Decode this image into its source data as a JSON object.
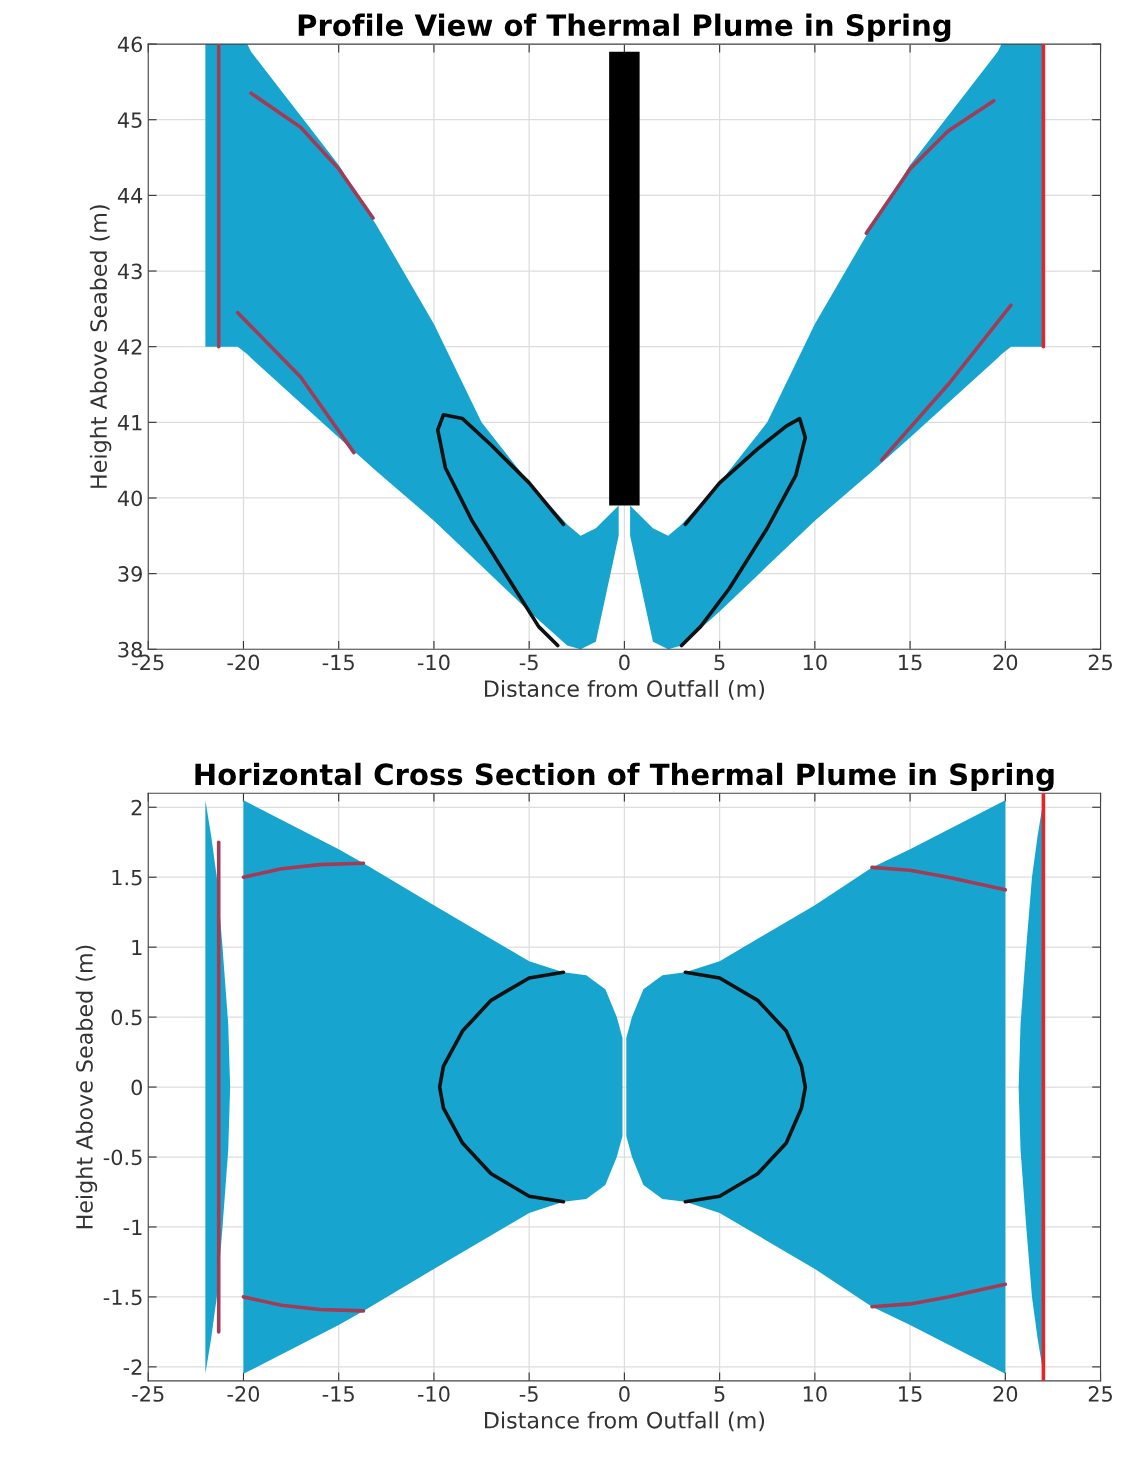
{
  "chart_data": [
    {
      "type": "line",
      "title": "Profile View of Thermal Plume in Spring",
      "xlabel": "Distance from Outfall (m)",
      "ylabel": "Height Above Seabed (m)",
      "xlim": [
        -25,
        25
      ],
      "xticks": [
        -25,
        -20,
        -15,
        -10,
        -5,
        0,
        5,
        10,
        15,
        20,
        25
      ],
      "ylim": [
        38,
        46
      ],
      "yticks": [
        38,
        39,
        40,
        41,
        42,
        43,
        44,
        45,
        46
      ],
      "grid": true,
      "series": [
        {
          "type": "area",
          "color": "#17a5cf",
          "x": [
            -22,
            -20.3,
            -19.8,
            -19.6,
            -15,
            -13,
            -10,
            -7.5,
            -5,
            -3,
            -2.3,
            -1.5,
            -0.3,
            -0.3,
            -1.5,
            -2.3,
            -3,
            -5,
            -7.5,
            -10,
            -13,
            -15,
            -19.6,
            -19.8,
            -20.3,
            -22
          ],
          "values": [
            46,
            46,
            46,
            45.9,
            44.4,
            43.6,
            42.3,
            41,
            40.2,
            39.65,
            39.5,
            39.6,
            39.9,
            39.5,
            38.1,
            38,
            38.05,
            38.5,
            39.1,
            39.7,
            40.35,
            40.8,
            41.85,
            41.9,
            42,
            42
          ]
        },
        {
          "type": "area",
          "color": "#17a5cf",
          "x": [
            0.3,
            1.5,
            2.3,
            3,
            5,
            7.5,
            10,
            13,
            15,
            19.6,
            19.8,
            20.3,
            22,
            22,
            20.3,
            19.8,
            19.6,
            15,
            13,
            10,
            7.5,
            5,
            3,
            2.3,
            1.5,
            0.3
          ],
          "values": [
            39.9,
            39.6,
            39.5,
            39.65,
            40.2,
            41,
            42.3,
            43.6,
            44.4,
            45.9,
            46,
            46,
            46,
            42,
            42,
            41.9,
            41.85,
            40.8,
            40.35,
            39.7,
            39.1,
            38.5,
            38.05,
            38,
            38.1,
            39.5
          ]
        },
        {
          "type": "area",
          "color": "#000000",
          "x": [
            -0.8,
            0.8,
            0.8,
            -0.8
          ],
          "values": [
            45.9,
            45.9,
            39.9,
            39.9
          ]
        },
        {
          "color": "#a23b55",
          "x": [
            -21.3,
            -21.3
          ],
          "values": [
            42,
            46
          ]
        },
        {
          "color": "#e3262a",
          "x": [
            22,
            22
          ],
          "values": [
            42,
            46
          ]
        },
        {
          "color": "#a23b55",
          "x": [
            -19.6,
            -17,
            -15,
            -13.2
          ],
          "values": [
            45.35,
            44.9,
            44.35,
            43.7
          ]
        },
        {
          "color": "#a23b55",
          "x": [
            -20.3,
            -17,
            -14.2
          ],
          "values": [
            42.45,
            41.6,
            40.6
          ]
        },
        {
          "color": "#a23b55",
          "x": [
            12.7,
            15,
            17,
            19.4
          ],
          "values": [
            43.5,
            44.35,
            44.85,
            45.25
          ]
        },
        {
          "color": "#a23b55",
          "x": [
            13.5,
            17,
            20.3
          ],
          "values": [
            40.5,
            41.5,
            42.55
          ]
        },
        {
          "color": "#111111",
          "x": [
            -3.2,
            -5,
            -7,
            -8.5,
            -9.5,
            -9.8,
            -9.4,
            -8,
            -6,
            -4.5,
            -3.5
          ],
          "values": [
            39.65,
            40.2,
            40.7,
            41.05,
            41.1,
            40.9,
            40.4,
            39.7,
            38.9,
            38.3,
            38.05
          ]
        },
        {
          "color": "#111111",
          "x": [
            3.2,
            5,
            7,
            8.5,
            9.2,
            9.5,
            9,
            7.5,
            5.5,
            4,
            3
          ],
          "values": [
            39.65,
            40.2,
            40.65,
            40.95,
            41.05,
            40.8,
            40.3,
            39.6,
            38.8,
            38.3,
            38.05
          ]
        }
      ]
    },
    {
      "type": "line",
      "title": "Horizontal Cross Section of Thermal Plume in Spring",
      "xlabel": "Distance from Outfall (m)",
      "ylabel": "Height Above Seabed (m)",
      "xlim": [
        -25,
        25
      ],
      "xticks": [
        -25,
        -20,
        -15,
        -10,
        -5,
        0,
        5,
        10,
        15,
        20,
        25
      ],
      "ylim": [
        -2.1,
        2.1
      ],
      "yticks": [
        -2,
        -1.5,
        -1,
        -0.5,
        0,
        0.5,
        1,
        1.5,
        2
      ],
      "grid": true,
      "series": [
        {
          "type": "area",
          "color": "#17a5cf",
          "x": [
            -22,
            -21.7,
            -21.4,
            -21.1,
            -20.8,
            -20.7,
            -20.8,
            -21.1,
            -21.4,
            -21.7,
            -22
          ],
          "values": [
            2.05,
            1.8,
            1.5,
            1.0,
            0.45,
            0,
            -0.45,
            -1.0,
            -1.5,
            -1.8,
            -2.05
          ]
        },
        {
          "type": "area",
          "color": "#17a5cf",
          "x": [
            -20,
            -15,
            -13.7,
            -10,
            -5,
            -3.2,
            -2,
            -1,
            -0.4,
            -0.1,
            -0.1,
            -0.4,
            -1,
            -2,
            -3.2,
            -5,
            -10,
            -13.7,
            -15,
            -20
          ],
          "values": [
            2.05,
            1.7,
            1.6,
            1.3,
            0.9,
            0.82,
            0.8,
            0.7,
            0.5,
            0.35,
            -0.35,
            -0.5,
            -0.7,
            -0.8,
            -0.82,
            -0.9,
            -1.3,
            -1.6,
            -1.7,
            -2.05
          ]
        },
        {
          "type": "area",
          "color": "#17a5cf",
          "x": [
            0.1,
            0.4,
            1,
            2,
            3.2,
            5,
            10,
            13,
            15,
            20,
            20,
            15,
            13,
            10,
            5,
            3.2,
            2,
            1,
            0.4,
            0.1
          ],
          "values": [
            0.35,
            0.5,
            0.7,
            0.8,
            0.82,
            0.9,
            1.3,
            1.57,
            1.7,
            2.05,
            -2.05,
            -1.7,
            -1.57,
            -1.3,
            -0.9,
            -0.82,
            -0.8,
            -0.7,
            -0.5,
            -0.35
          ]
        },
        {
          "type": "area",
          "color": "#17a5cf",
          "x": [
            22,
            21.7,
            21.4,
            21.1,
            20.8,
            20.7,
            20.8,
            21.1,
            21.4,
            21.7,
            22
          ],
          "values": [
            2.05,
            1.8,
            1.5,
            1.0,
            0.45,
            0,
            -0.45,
            -1.0,
            -1.5,
            -1.8,
            -2.05
          ]
        },
        {
          "color": "#a23b55",
          "x": [
            -21.3,
            -21.3
          ],
          "values": [
            -1.75,
            1.75
          ]
        },
        {
          "color": "#e3262a",
          "x": [
            22,
            22
          ],
          "values": [
            -2.1,
            2.1
          ]
        },
        {
          "color": "#a23b55",
          "x": [
            -20,
            -18,
            -16,
            -13.7
          ],
          "values": [
            1.5,
            1.56,
            1.59,
            1.6
          ]
        },
        {
          "color": "#a23b55",
          "x": [
            -20,
            -18,
            -16,
            -13.7
          ],
          "values": [
            -1.5,
            -1.56,
            -1.59,
            -1.6
          ]
        },
        {
          "color": "#a23b55",
          "x": [
            13,
            15,
            17,
            20
          ],
          "values": [
            1.57,
            1.55,
            1.5,
            1.41
          ]
        },
        {
          "color": "#a23b55",
          "x": [
            13,
            15,
            17,
            20
          ],
          "values": [
            -1.57,
            -1.55,
            -1.5,
            -1.41
          ]
        },
        {
          "color": "#111111",
          "x": [
            -3.2,
            -5,
            -7,
            -8.5,
            -9.5,
            -9.7,
            -9.5,
            -8.5,
            -7,
            -5,
            -3.2
          ],
          "values": [
            0.82,
            0.78,
            0.62,
            0.4,
            0.15,
            0,
            -0.15,
            -0.4,
            -0.62,
            -0.78,
            -0.82
          ]
        },
        {
          "color": "#111111",
          "x": [
            3.2,
            5,
            7,
            8.5,
            9.3,
            9.5,
            9.3,
            8.5,
            7,
            5,
            3.2
          ],
          "values": [
            0.82,
            0.78,
            0.62,
            0.4,
            0.15,
            0,
            -0.15,
            -0.4,
            -0.62,
            -0.78,
            -0.82
          ]
        }
      ]
    }
  ]
}
